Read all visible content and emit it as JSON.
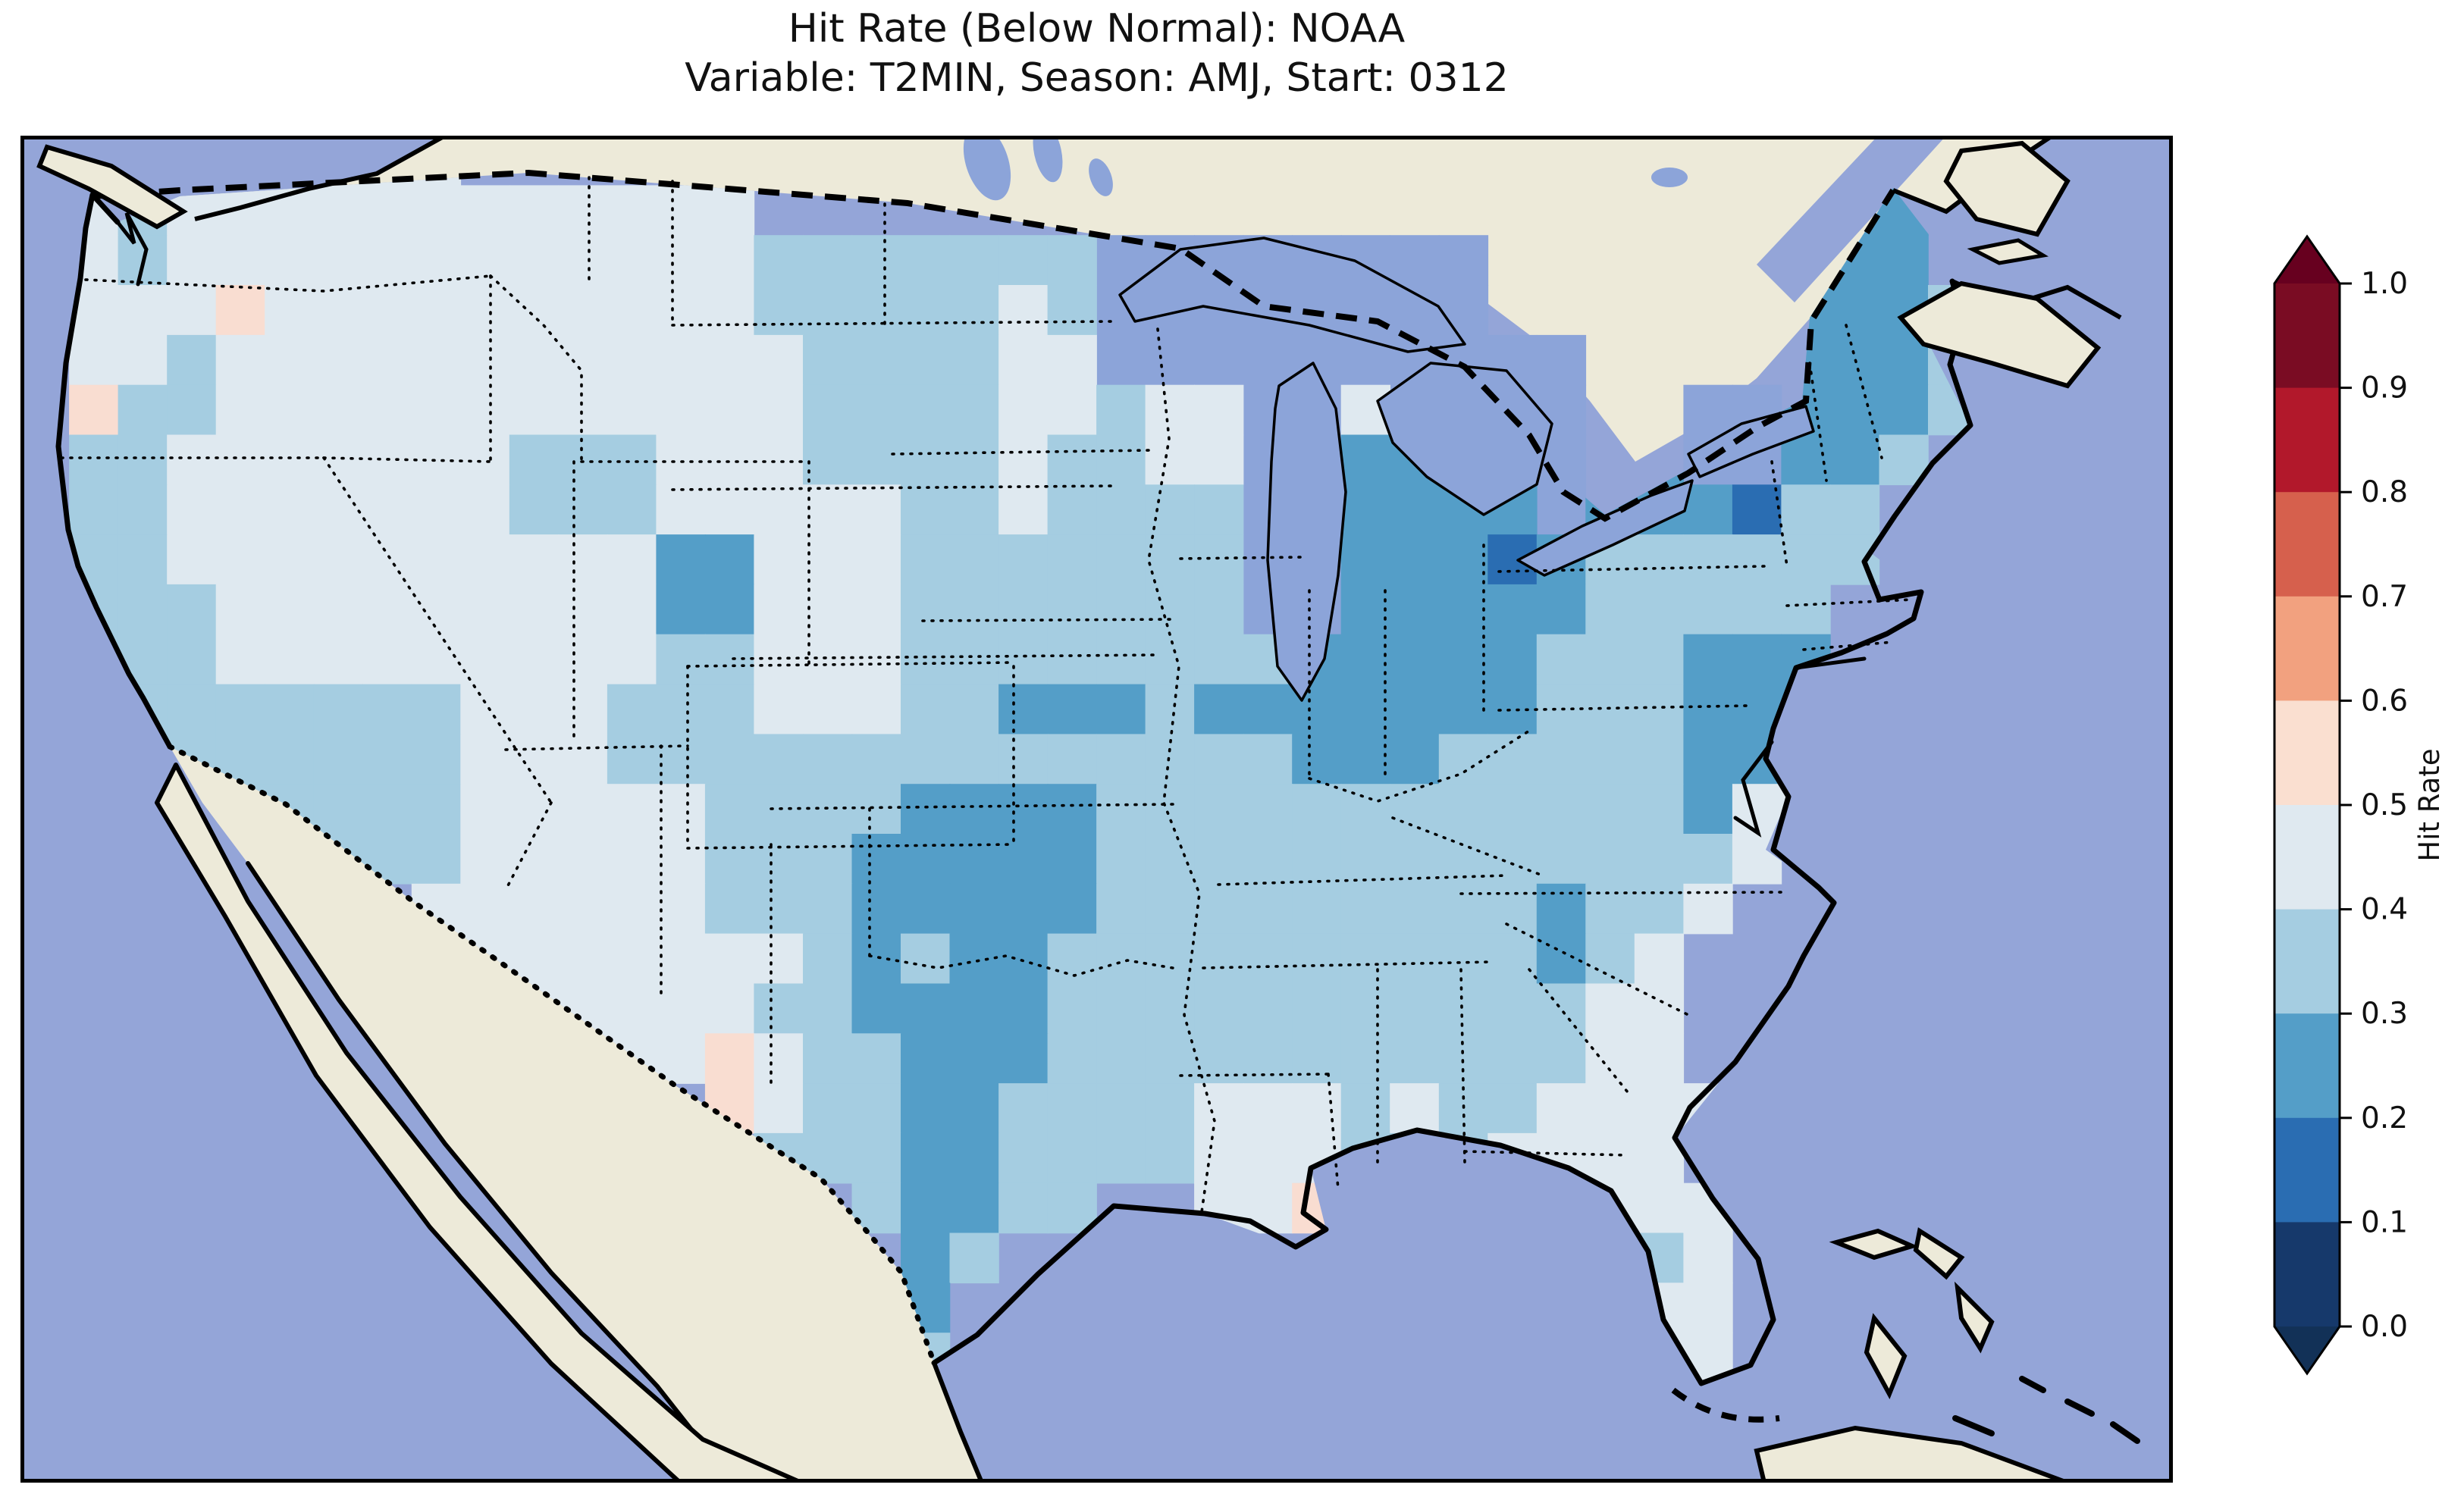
{
  "title": {
    "line1": "Hit Rate (Below Normal): NOAA",
    "line2": "Variable: T2MIN, Season: AMJ, Start: 0312"
  },
  "colorbar": {
    "label": "Hit Rate",
    "ticks": [
      "1.0",
      "0.9",
      "0.8",
      "0.7",
      "0.6",
      "0.5",
      "0.4",
      "0.3",
      "0.2",
      "0.1",
      "0.0"
    ],
    "segment_colors_top_to_bottom": [
      "#7a0c23",
      "#b2182b",
      "#d6604d",
      "#f2a17f",
      "#fadfd0",
      "#dfe9f0",
      "#a5cde1",
      "#549ec8",
      "#2a6db2",
      "#16396b"
    ],
    "over_color": "#67001f",
    "under_color": "#123157"
  },
  "map": {
    "ocean_color": "#94a5d8",
    "lake_color": "#8ca4d9",
    "land_color": "#edead9",
    "outline_color": "#000000",
    "value_colors": {
      "a": "#dfe9f0",
      "b": "#a5cde1",
      "c": "#549ec8",
      "d": "#2a6db2",
      "p": "#f9ddd1",
      "w": "#8ca4d9"
    },
    "value_bins": {
      "a": "0.4-0.5",
      "b": "0.3-0.4",
      "c": "0.2-0.3",
      "d": "0.1-0.2",
      "p": "0.5-0.6",
      "w": "water/masked"
    }
  },
  "chart_data": {
    "type": "heatmap",
    "title": "Hit Rate (Below Normal): NOAA",
    "subtitle": "Variable: T2MIN, Season: AMJ, Start: 0312",
    "source": "NOAA",
    "variable": "T2MIN",
    "season": "AMJ",
    "start": "0312",
    "colorbar_label": "Hit Rate",
    "colorbar_range": [
      0.0,
      1.0
    ],
    "colorbar_tick_step": 0.1,
    "colorbar_extend": "both",
    "legend_position": "right",
    "value_encoding": {
      "a": 0.45,
      "b": 0.35,
      "c": 0.25,
      "d": 0.15,
      "p": 0.55
    },
    "grid_cols": 44,
    "grid_rows_count": 27,
    "grid_rows": [
      "..aaaaaaa...................................",
      ".abaaaaaaaaaaaa.....................ccc.....",
      ".abaaaaaaaaaaaabbbbbbbwwwwwwww.....cccc.....",
      ".aaapaaaaaaaaaabbbbbabwwwwwwww.....ccccb....",
      ".aabaaaaaaaaaaaabbbbaawwwwwwwwww...ccccb....",
      ".pbbaaaaaaaaaaaabbbbaabaawwawwwwccwwcccb....",
      ".bbaaaaaaabbbaaabbbbabbaawwcccwwccwwccb.....",
      ".bbaaaaaaabbbaaaaabbabbbbwwccccwcccdbb......",
      ".bbaaaaaaaaaaccaaabbbbbbbwwcccdcbbbbbb......",
      ".bbbaaaaaaaaaccaaabbbbbbbwwcccccbbbbb.......",
      ".bbbaaaaaaaaabbaaabbbbbbbbcccccbbbccc.......",
      ".bbbbbbbbaaabbbaaabbcccbcccccccbbbccc.......",
      "..bbbbbbbaaabbbbbbbbbbbbbbcccbbbbbcca.......",
      "...bbbbbbaaaaabbbbccccbbbbbbbbbbbbcaa.......",
      ".....bbbbaaaaabbbcccccbbbbbbbbbbbbba........",
      "........aaaaaabbbcccccbbbbbbbbbcbba.........",
      ".........aaaaaaabcbccbbbbbbbbbbcba..........",
      "..........aaaaabbccccbbbbbbbbbbbaa..........",
      "...........aaapabbcccbbbbbbbbbbbaa..........",
      "..............pabbccbbbbaaababbaaaa.........",
      "...............bbbccbbbbaaabbbaaaa..........",
      ".................bccbb..aap.....aaa.........",
      "..................cb............aba.........",
      "..................c..............aa.........",
      "..................b.............aaa.........",
      "............................................",
      "............................................"
    ]
  }
}
